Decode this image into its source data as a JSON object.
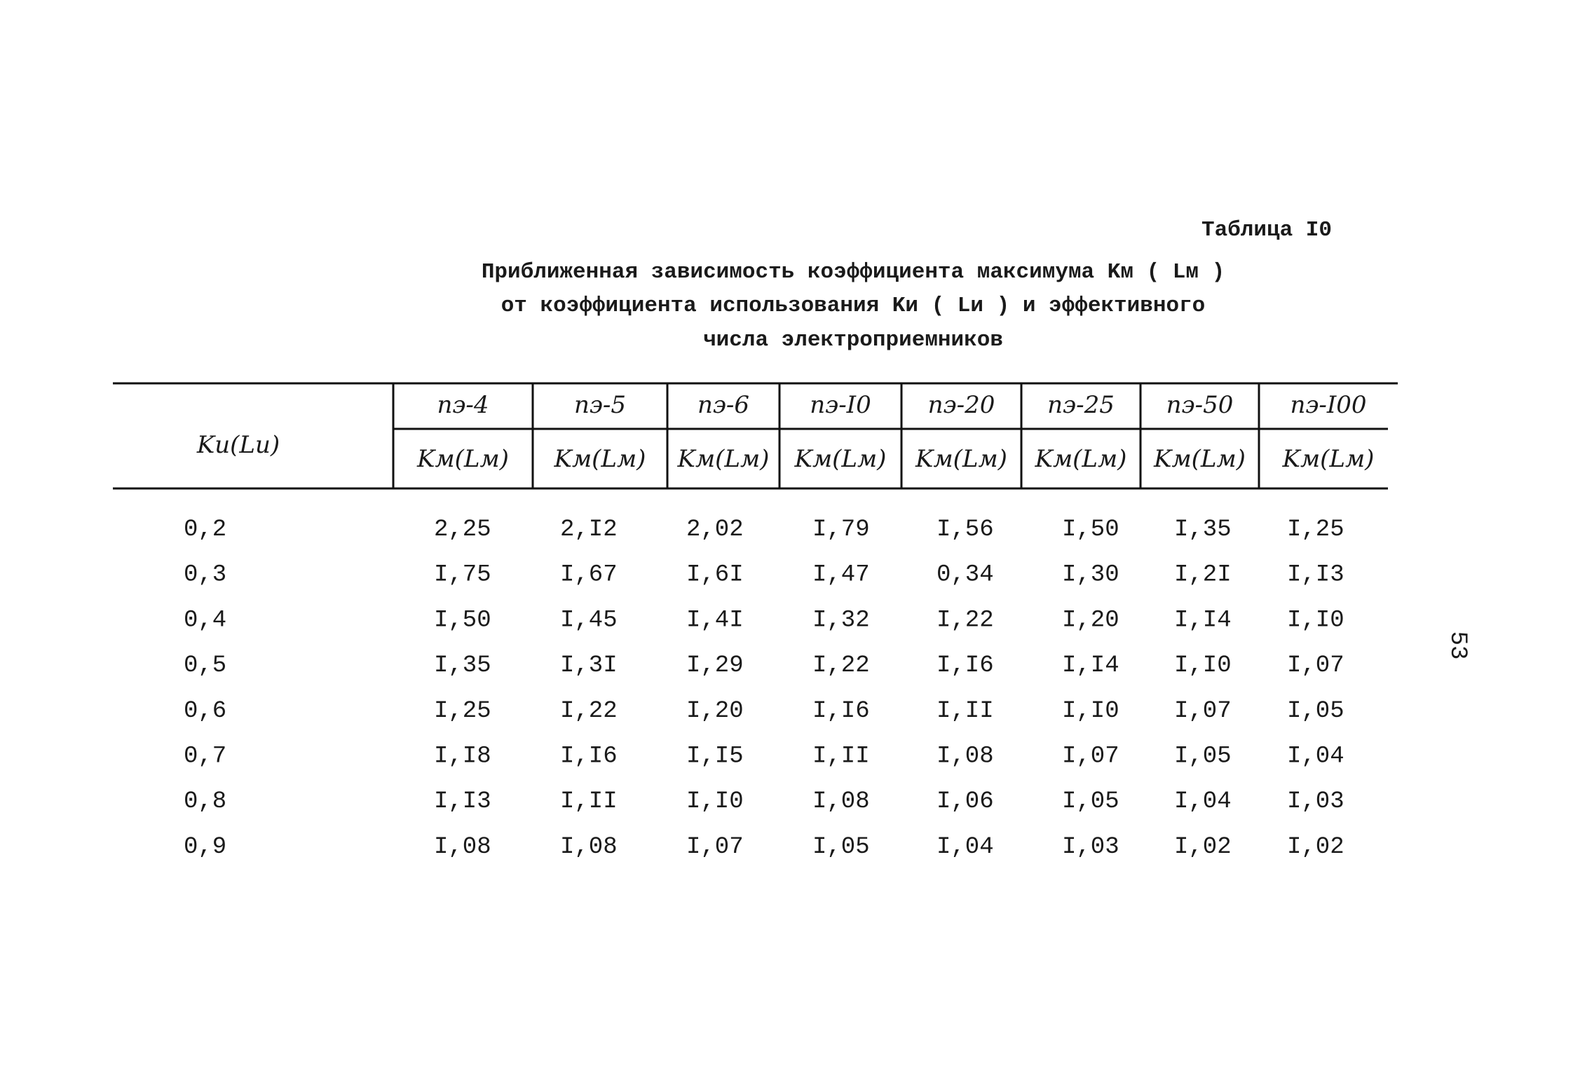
{
  "label": "Таблица I0",
  "caption": [
    "Приближенная зависимость коэффициента максимума Kм ( Lм )",
    "от коэффициента использования Kи ( Lи ) и эффективного",
    "числа электроприемников"
  ],
  "table": {
    "row_header": "Kи(Lи)",
    "columns": [
      {
        "n": "nэ-4",
        "sub": "Kм(Lм)"
      },
      {
        "n": "nэ-5",
        "sub": "Kм(Lм)"
      },
      {
        "n": "nэ-6",
        "sub": "Kм(Lм)"
      },
      {
        "n": "nэ-I0",
        "sub": "Kм(Lм)"
      },
      {
        "n": "nэ-20",
        "sub": "Kм(Lм)"
      },
      {
        "n": "nэ-25",
        "sub": "Kм(Lм)"
      },
      {
        "n": "nэ-50",
        "sub": "Kм(Lм)"
      },
      {
        "n": "nэ-I00",
        "sub": "Kм(Lм)"
      }
    ],
    "rows": [
      [
        "0,2",
        "2,25",
        "2,I2",
        "2,02",
        "I,79",
        "I,56",
        "I,50",
        "I,35",
        "I,25"
      ],
      [
        "0,3",
        "I,75",
        "I,67",
        "I,6I",
        "I,47",
        "0,34",
        "I,30",
        "I,2I",
        "I,I3"
      ],
      [
        "0,4",
        "I,50",
        "I,45",
        "I,4I",
        "I,32",
        "I,22",
        "I,20",
        "I,I4",
        "I,I0"
      ],
      [
        "0,5",
        "I,35",
        "I,3I",
        "I,29",
        "I,22",
        "I,I6",
        "I,I4",
        "I,I0",
        "I,07"
      ],
      [
        "0,6",
        "I,25",
        "I,22",
        "I,20",
        "I,I6",
        "I,II",
        "I,I0",
        "I,07",
        "I,05"
      ],
      [
        "0,7",
        "I,I8",
        "I,I6",
        "I,I5",
        "I,II",
        "I,08",
        "I,07",
        "I,05",
        "I,04"
      ],
      [
        "0,8",
        "I,I3",
        "I,II",
        "I,I0",
        "I,08",
        "I,06",
        "I,05",
        "I,04",
        "I,03"
      ],
      [
        "0,9",
        "I,08",
        "I,08",
        "I,07",
        "I,05",
        "I,04",
        "I,03",
        "I,02",
        "I,02"
      ]
    ]
  },
  "page_number": "53"
}
